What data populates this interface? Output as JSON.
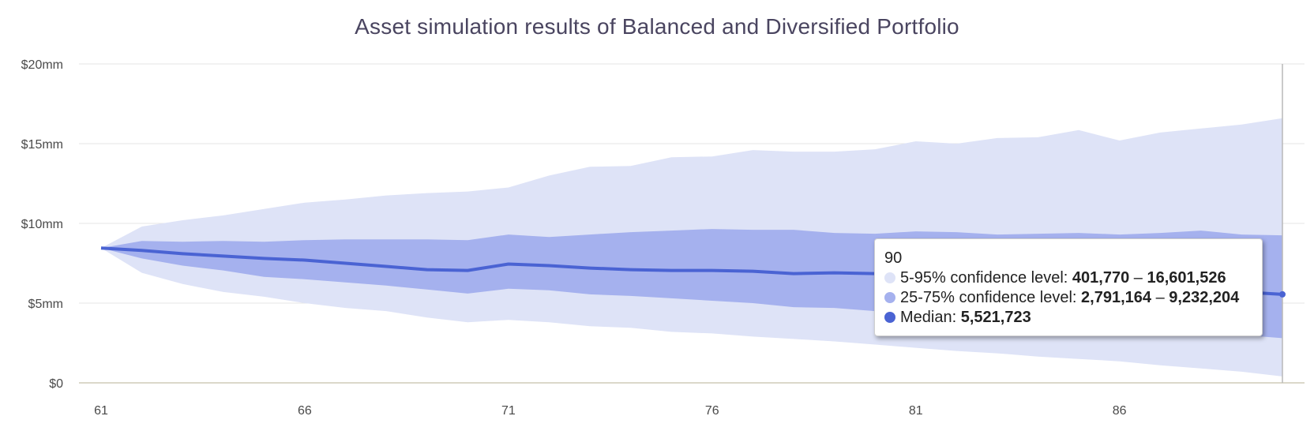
{
  "chart_data": {
    "type": "area",
    "title": "Asset simulation results of Balanced and Diversified Portfolio",
    "x": [
      61,
      62,
      63,
      64,
      65,
      66,
      67,
      68,
      69,
      70,
      71,
      72,
      73,
      74,
      75,
      76,
      77,
      78,
      79,
      80,
      81,
      82,
      83,
      84,
      85,
      86,
      87,
      88,
      89,
      90
    ],
    "xticks": [
      61,
      66,
      71,
      76,
      81,
      86
    ],
    "xtick_labels": [
      "61",
      "66",
      "71",
      "76",
      "81",
      "86"
    ],
    "xlim": [
      61,
      90
    ],
    "yticks": [
      0,
      5,
      10,
      15,
      20
    ],
    "ytick_labels": [
      "$0",
      "$5mm",
      "$10mm",
      "$15mm",
      "$20mm"
    ],
    "ylim": [
      0,
      20
    ],
    "y_unit": "millions USD",
    "grid": "horizontal",
    "series": [
      {
        "name": "5-95% confidence level",
        "color": "#dee3f7",
        "low": [
          8.45,
          6.9,
          6.2,
          5.7,
          5.4,
          5.0,
          4.7,
          4.5,
          4.1,
          3.8,
          3.95,
          3.8,
          3.55,
          3.45,
          3.2,
          3.1,
          2.9,
          2.75,
          2.6,
          2.4,
          2.2,
          2.0,
          1.85,
          1.65,
          1.5,
          1.35,
          1.1,
          0.9,
          0.7,
          0.4
        ],
        "high": [
          8.45,
          9.8,
          10.2,
          10.5,
          10.9,
          11.3,
          11.5,
          11.75,
          11.9,
          12.0,
          12.25,
          13.0,
          13.55,
          13.6,
          14.15,
          14.2,
          14.6,
          14.5,
          14.5,
          14.65,
          15.15,
          15.0,
          15.35,
          15.4,
          15.85,
          15.2,
          15.7,
          15.95,
          16.2,
          16.6
        ]
      },
      {
        "name": "25-75% confidence level",
        "color": "#a5b1ee",
        "low": [
          8.45,
          7.8,
          7.35,
          7.05,
          6.65,
          6.5,
          6.3,
          6.1,
          5.85,
          5.6,
          5.9,
          5.8,
          5.55,
          5.45,
          5.3,
          5.15,
          5.0,
          4.75,
          4.7,
          4.5,
          4.3,
          4.15,
          3.9,
          3.75,
          3.6,
          3.5,
          3.3,
          3.15,
          3.0,
          2.8
        ],
        "high": [
          8.45,
          8.9,
          8.85,
          8.9,
          8.85,
          8.95,
          9.0,
          9.0,
          9.0,
          8.95,
          9.3,
          9.15,
          9.3,
          9.45,
          9.55,
          9.65,
          9.6,
          9.6,
          9.4,
          9.35,
          9.5,
          9.45,
          9.3,
          9.35,
          9.4,
          9.3,
          9.4,
          9.55,
          9.3,
          9.25
        ]
      },
      {
        "name": "Median",
        "color": "#4a63d3",
        "values": [
          8.45,
          8.3,
          8.1,
          7.95,
          7.8,
          7.7,
          7.5,
          7.3,
          7.1,
          7.05,
          7.45,
          7.35,
          7.2,
          7.1,
          7.05,
          7.05,
          7.0,
          6.85,
          6.9,
          6.85,
          6.8,
          6.7,
          6.6,
          6.5,
          6.4,
          6.3,
          6.1,
          5.9,
          5.7,
          5.55
        ]
      }
    ],
    "crosshair_x": 90,
    "tooltip": {
      "x_label": "90",
      "rows": [
        {
          "label": "5-95% confidence level: ",
          "value_low": "401,770",
          "sep": " – ",
          "value_high": "16,601,526",
          "color": "#dee3f7"
        },
        {
          "label": "25-75% confidence level: ",
          "value_low": "2,791,164",
          "sep": " – ",
          "value_high": "9,232,204",
          "color": "#a5b1ee"
        },
        {
          "label": "Median: ",
          "value": "5,521,723",
          "color": "#4a63d3"
        }
      ]
    }
  }
}
